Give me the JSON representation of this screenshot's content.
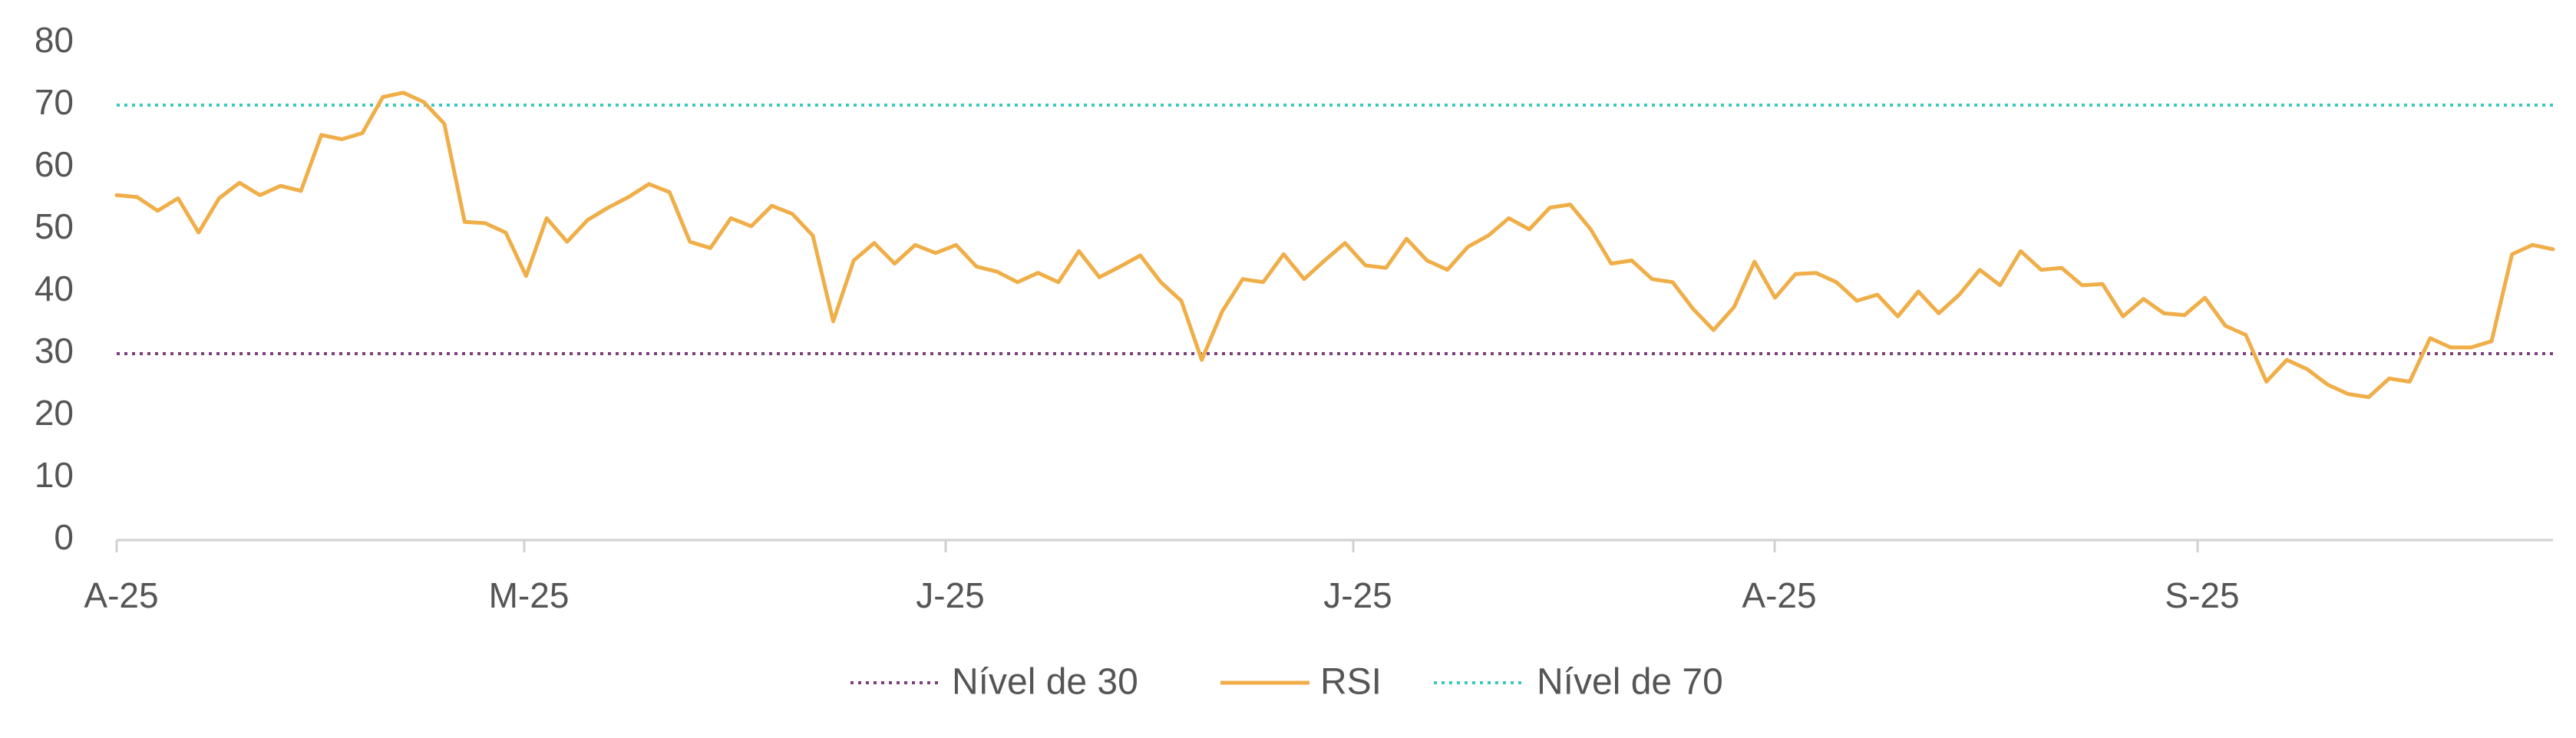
{
  "chart_data": {
    "type": "line",
    "title": "",
    "xlabel": "",
    "ylabel": "",
    "ylim": [
      0,
      80
    ],
    "yticks": [
      "0",
      "10",
      "20",
      "30",
      "40",
      "50",
      "60",
      "70",
      "80"
    ],
    "xticks": [
      "A-25",
      "M-25",
      "J-25",
      "J-25",
      "A-25",
      "S-25"
    ],
    "grid": false,
    "legend": "bottom",
    "series": [
      {
        "name": "RSI",
        "color": "#F0AE48",
        "values": [
          55.5,
          55.2,
          53.0,
          55.0,
          49.5,
          55.0,
          57.5,
          55.5,
          57.0,
          56.2,
          65.2,
          64.5,
          65.5,
          71.3,
          72.0,
          70.5,
          67.0,
          51.2,
          51.0,
          49.5,
          42.5,
          51.8,
          48.0,
          51.5,
          53.5,
          55.2,
          57.3,
          56.0,
          48.0,
          47.0,
          51.8,
          50.5,
          53.8,
          52.5,
          49.0,
          35.2,
          45.0,
          47.8,
          44.5,
          47.5,
          46.2,
          47.5,
          44.0,
          43.2,
          41.5,
          43.0,
          41.5,
          46.5,
          42.3,
          44.0,
          45.8,
          41.5,
          38.5,
          29.0,
          36.8,
          42.0,
          41.5,
          46.0,
          42.0,
          45.0,
          47.8,
          44.2,
          43.8,
          48.5,
          45.0,
          43.5,
          47.2,
          49.0,
          51.8,
          50.0,
          53.5,
          54.0,
          50.0,
          44.5,
          45.0,
          42.0,
          41.5,
          37.2,
          33.8,
          37.5,
          44.8,
          39.0,
          42.8,
          43.0,
          41.5,
          38.5,
          39.5,
          36.0,
          40.0,
          36.5,
          39.5,
          43.5,
          41.0,
          46.5,
          43.5,
          43.8,
          41.0,
          41.2,
          36.0,
          38.8,
          36.5,
          36.2,
          39.0,
          34.5,
          33.0,
          25.5,
          29.0,
          27.5,
          25.0,
          23.5,
          23.0,
          26.0,
          25.5,
          32.5,
          31.0,
          31.0,
          32.0,
          46.0,
          47.5,
          46.8
        ]
      },
      {
        "name": "Nível de 30",
        "color": "#7B3F7A",
        "values": [
          30,
          30
        ]
      },
      {
        "name": "Nível de 70",
        "color": "#39C9BE",
        "values": [
          70,
          70
        ]
      }
    ],
    "legend_order": [
      "Nível de 30",
      "RSI",
      "Nível de 70"
    ]
  }
}
